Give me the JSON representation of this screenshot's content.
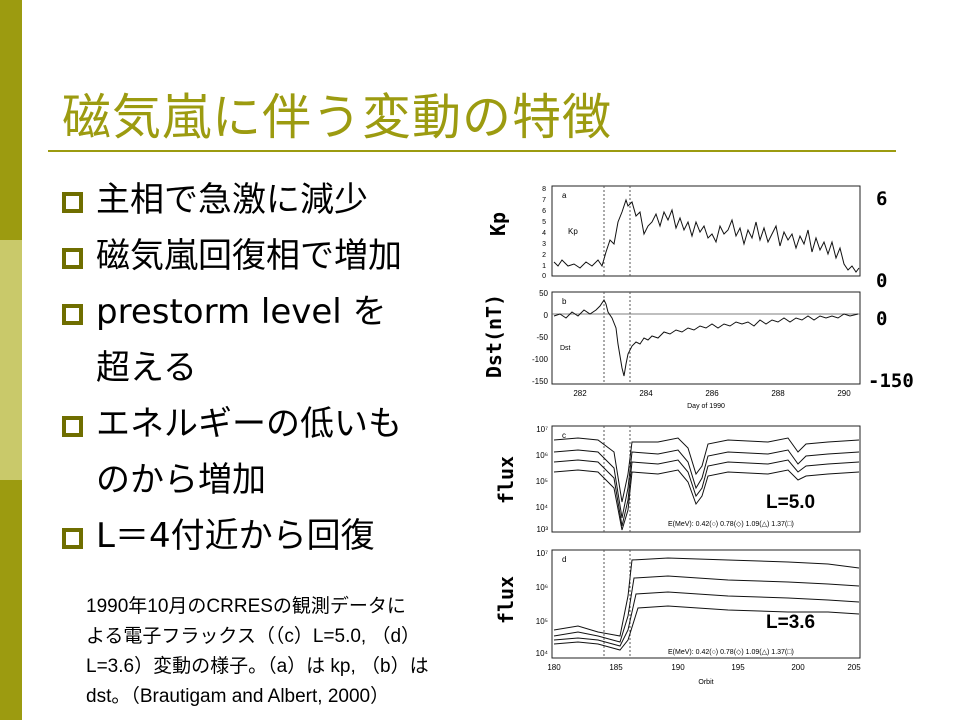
{
  "title": "磁気嵐に伴う変動の特徴",
  "bullets": [
    "主相で急激に減少",
    "磁気嵐回復相で増加",
    "prestorm level を\n超える",
    "エネルギーの低いも\nのから増加",
    "L＝4付近から回復"
  ],
  "caption": "1990年10月のCRRESの観測データに\nよる電子フラックス（（c）L=5.0, （d）\nL=3.6）変動の様子。（a）は kp, （b）は\ndst。（Brautigam and Albert, 2000）",
  "figure": {
    "kp_label": "Kp",
    "kp_max": "6",
    "kp_min": "0",
    "dst_label": "Dst(nT)",
    "dst_zero": "0",
    "dst_min": "-150",
    "flux_label_c": "flux",
    "flux_label_d": "flux",
    "l_c": "L=5.0",
    "l_d": "L=3.6",
    "panel_a_tag": "a",
    "panel_b_tag": "b",
    "panel_c_tag": "c",
    "panel_d_tag": "d",
    "kp_ticks": [
      "8",
      "7",
      "6",
      "5",
      "4",
      "3",
      "2",
      "1",
      "0"
    ],
    "kp_inner_axis": "Kp",
    "dst_ticks": [
      "50",
      "0",
      "-50",
      "-100",
      "-150"
    ],
    "dst_inner_axis": "Dst",
    "day_ticks": [
      "282",
      "284",
      "286",
      "288",
      "290"
    ],
    "day_axis_label": "Day of 1990",
    "flux_ticks": [
      "10⁷",
      "10⁶",
      "10⁵",
      "10⁴",
      "10³"
    ],
    "flux_ticks_d": [
      "10⁷",
      "10⁶",
      "10⁵",
      "10⁴"
    ],
    "energy_legend": "E(MeV): 0.42(○)  0.78(◇)  1.09(△)  1.37(□)",
    "energy_legend_d": "E(MeV): 0.42(○)  0.78(◇)  1.09(△)  1.37(□)",
    "orbit_ticks": [
      "180",
      "185",
      "190",
      "195",
      "200",
      "205"
    ],
    "orbit_axis_label": "Orbit"
  }
}
